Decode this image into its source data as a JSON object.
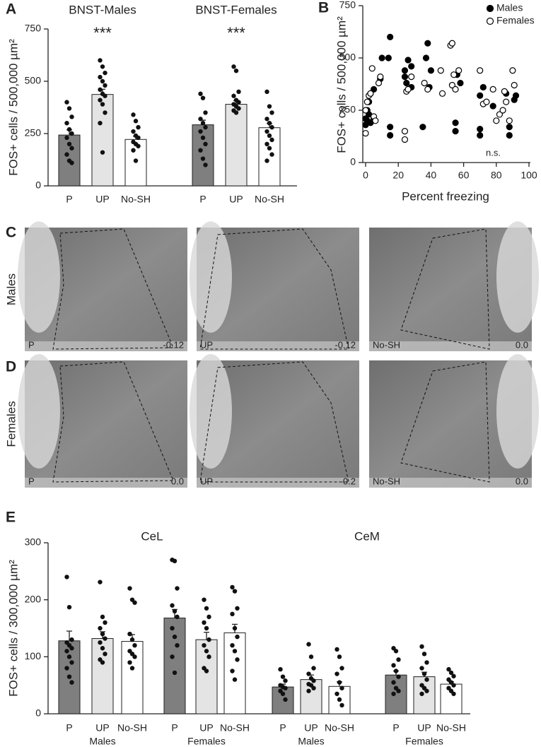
{
  "chart_data": [
    {
      "type": "bar",
      "panel": "A",
      "ylabel": "FOS+ cells / 500,000 µm²",
      "ylim": [
        0,
        750
      ],
      "yticks": [
        0,
        250,
        500,
        750
      ],
      "colors": [
        "#7f7f7f",
        "#e4e4e4",
        "#ffffff"
      ],
      "regions": [
        {
          "groups": [
            {
              "name": "BNST-Males",
              "categories": [
                "P",
                "UP",
                "No-SH"
              ],
              "values": [
                243,
                437,
                222
              ],
              "errors": [
                25,
                25,
                15
              ],
              "annotation": {
                "text": "***",
                "category": "UP"
              },
              "points": [
                [
                  400,
                  370,
                  330,
                  300,
                  270,
                  250,
                  230,
                  200,
                  180,
                  150,
                  120,
                  110
                ],
                [
                  600,
                  570,
                  540,
                  520,
                  500,
                  480,
                  460,
                  440,
                  430,
                  410,
                  390,
                  350,
                  300,
                  160
                ],
                [
                  340,
                  310,
                  280,
                  260,
                  240,
                  230,
                  210,
                  200,
                  190,
                  170,
                  120
                ]
              ]
            },
            {
              "name": "BNST-Females",
              "categories": [
                "P",
                "UP",
                "No-SH"
              ],
              "values": [
                292,
                390,
                278
              ],
              "errors": [
                22,
                18,
                20
              ],
              "annotation": {
                "text": "***",
                "category": "UP"
              },
              "points": [
                [
                  440,
                  420,
                  350,
                  320,
                  300,
                  280,
                  260,
                  230,
                  200,
                  170,
                  130,
                  100
                ],
                [
                  570,
                  550,
                  450,
                  430,
                  410,
                  400,
                  390,
                  380,
                  370,
                  360,
                  350
                ],
                [
                  450,
                  380,
                  350,
                  320,
                  300,
                  280,
                  260,
                  240,
                  220,
                  200,
                  180,
                  150,
                  120
                ]
              ]
            }
          ]
        }
      ]
    },
    {
      "type": "scatter",
      "panel": "B",
      "ylabel": "FOS+ cells / 500,000 µm²",
      "xlabel": "Percent freezing",
      "annotation": "n.s.",
      "xlim": [
        0,
        100
      ],
      "xticks": [
        0,
        20,
        40,
        60,
        80,
        100
      ],
      "ylim": [
        0,
        750
      ],
      "yticks": [
        0,
        250,
        500,
        750
      ],
      "legend": "top-right",
      "series": [
        {
          "name": "Males",
          "color": "#000000",
          "fill": "#000000",
          "x": [
            0,
            0,
            1,
            1,
            2,
            2,
            3,
            3,
            5,
            5,
            9,
            10,
            15,
            15,
            15,
            14,
            24,
            24,
            25,
            26,
            28,
            28,
            35,
            37,
            38,
            39,
            40,
            55,
            55,
            56,
            58,
            70,
            70,
            70,
            72,
            78,
            86,
            88,
            88,
            91,
            92
          ],
          "values": [
            180,
            210,
            200,
            250,
            230,
            290,
            190,
            330,
            210,
            350,
            400,
            500,
            600,
            170,
            130,
            500,
            440,
            410,
            380,
            490,
            360,
            460,
            170,
            500,
            570,
            360,
            440,
            190,
            150,
            420,
            380,
            320,
            130,
            160,
            360,
            270,
            330,
            170,
            130,
            300,
            320
          ]
        },
        {
          "name": "Females",
          "color": "#000000",
          "fill": "#ffffff",
          "x": [
            0,
            0,
            1,
            2,
            3,
            4,
            5,
            6,
            8,
            9,
            24,
            24,
            25,
            26,
            28,
            36,
            38,
            46,
            47,
            52,
            53,
            53,
            54,
            55,
            57,
            70,
            72,
            74,
            78,
            80,
            82,
            84,
            85,
            86,
            88,
            90,
            91
          ],
          "values": [
            140,
            250,
            290,
            320,
            330,
            450,
            220,
            200,
            380,
            410,
            150,
            110,
            340,
            350,
            410,
            380,
            350,
            440,
            330,
            560,
            570,
            370,
            420,
            350,
            440,
            440,
            280,
            290,
            350,
            200,
            230,
            250,
            340,
            290,
            200,
            440,
            370
          ]
        }
      ]
    },
    {
      "type": "bar",
      "panel": "E",
      "ylabel": "FOS+ cells / 300,000 µm²",
      "ylim": [
        0,
        300
      ],
      "yticks": [
        0,
        100,
        200,
        300
      ],
      "colors": [
        "#7f7f7f",
        "#e4e4e4",
        "#ffffff"
      ],
      "regions": [
        {
          "name": "CeL",
          "groups": [
            {
              "name": "Males",
              "categories": [
                "P",
                "UP",
                "No-SH"
              ],
              "values": [
                128,
                132,
                127
              ],
              "errors": [
                17,
                12,
                12
              ],
              "points": [
                [
                  240,
                  187,
                  130,
                  125,
                  120,
                  115,
                  110,
                  100,
                  90,
                  80,
                  65,
                  55
                ],
                [
                  231,
                  170,
                  160,
                  150,
                  140,
                  132,
                  125,
                  115,
                  105,
                  95,
                  90
                ],
                [
                  220,
                  200,
                  195,
                  140,
                  130,
                  120,
                  110,
                  105,
                  100,
                  90,
                  80
                ]
              ]
            },
            {
              "name": "Females",
              "categories": [
                "P",
                "UP",
                "No-SH"
              ],
              "values": [
                168,
                130,
                142
              ],
              "errors": [
                15,
                13,
                15
              ],
              "points": [
                [
                  270,
                  268,
                  220,
                  190,
                  180,
                  170,
                  150,
                  135,
                  120,
                  100,
                  72
                ],
                [
                  200,
                  185,
                  170,
                  160,
                  150,
                  130,
                  120,
                  110,
                  100,
                  80,
                  75
                ],
                [
                  222,
                  215,
                  185,
                  175,
                  150,
                  135,
                  120,
                  110,
                  95,
                  75,
                  60
                ]
              ]
            }
          ]
        },
        {
          "name": "CeM",
          "groups": [
            {
              "name": "Males",
              "categories": [
                "P",
                "UP",
                "No-SH"
              ],
              "values": [
                47,
                60,
                48
              ],
              "errors": [
                5,
                8,
                8
              ],
              "points": [
                [
                  78,
                  65,
                  58,
                  50,
                  47,
                  45,
                  40,
                  35,
                  25
                ],
                [
                  122,
                  100,
                  80,
                  70,
                  62,
                  58,
                  52,
                  50,
                  45,
                  40
                ],
                [
                  113,
                  100,
                  80,
                  70,
                  55,
                  45,
                  35,
                  25,
                  15
                ]
              ]
            },
            {
              "name": "Females",
              "categories": [
                "P",
                "UP",
                "No-SH"
              ],
              "values": [
                68,
                65,
                52
              ],
              "errors": [
                7,
                8,
                4
              ],
              "points": [
                [
                  115,
                  110,
                  95,
                  85,
                  75,
                  65,
                  55,
                  45,
                  40,
                  35
                ],
                [
                  118,
                  105,
                  90,
                  80,
                  70,
                  60,
                  50,
                  45,
                  40,
                  35
                ],
                [
                  78,
                  72,
                  66,
                  60,
                  55,
                  50,
                  45,
                  40,
                  35
                ]
              ]
            }
          ]
        }
      ]
    }
  ],
  "image_panels": [
    {
      "panel": "C",
      "row_label": "Males",
      "images": [
        {
          "label": "P",
          "level": "-0.12"
        },
        {
          "label": "UP",
          "level": "-0.12"
        },
        {
          "label": "No-SH",
          "level": "0.0"
        }
      ]
    },
    {
      "panel": "D",
      "row_label": "Females",
      "images": [
        {
          "label": "P",
          "level": "0.0"
        },
        {
          "label": "UP",
          "level": "-0.2"
        },
        {
          "label": "No-SH",
          "level": "0.0"
        }
      ]
    }
  ]
}
